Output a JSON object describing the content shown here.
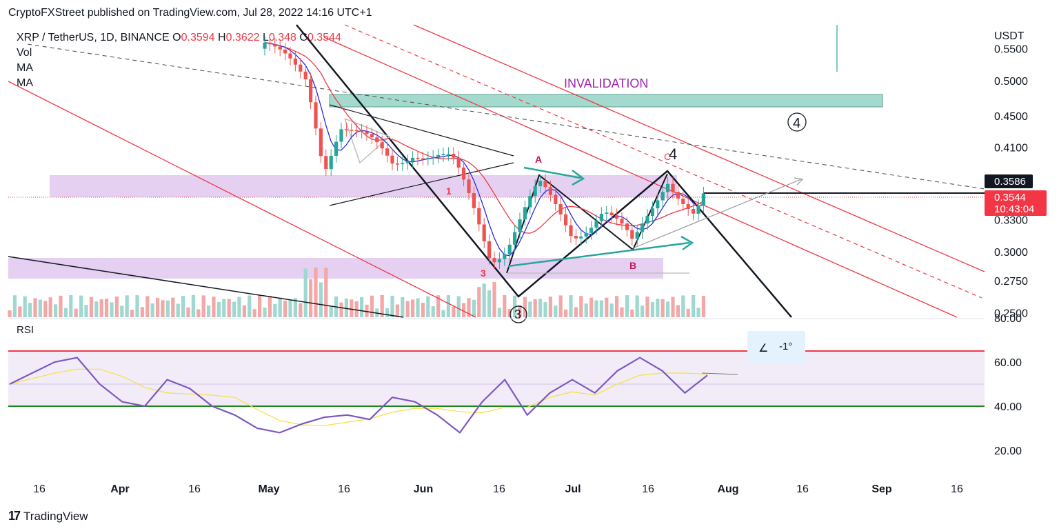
{
  "header": {
    "publisher": "CryptoFXStreet published on TradingView.com, Jul 28, 2022 14:16 UTC+1"
  },
  "legend": {
    "symbol": "XRP / TetherUS, 1D, BINANCE",
    "o_label": "O",
    "o_value": "0.3594",
    "h_label": "H",
    "h_value": "0.3622",
    "l_label": "L",
    "l_value": "0.348",
    "c_label": "C",
    "c_value": "0.3544",
    "indicators": [
      "Vol",
      "MA",
      "MA"
    ]
  },
  "price_axis": {
    "currency": "USDT",
    "ticks": [
      "0.5500",
      "0.5000",
      "0.4500",
      "0.4100",
      "0.3300",
      "0.3000",
      "0.2750",
      "0.2500"
    ]
  },
  "price_tags": {
    "line_price": "0.3586",
    "last_price": "0.3544",
    "countdown": "10:43:04"
  },
  "annotations": {
    "invalidation": "INVALIDATION",
    "wave4_circle": "4",
    "wave_c_label": "C",
    "wave4_label": "4",
    "wave3_circle": "3",
    "A": "A",
    "B": "B",
    "one": "1",
    "three": "3"
  },
  "rsi": {
    "label": "RSI",
    "ticks": [
      "80.00",
      "60.00",
      "40.00",
      "20.00"
    ],
    "angle_label": "-1°"
  },
  "x_axis": {
    "labels": [
      "16",
      "Apr",
      "16",
      "May",
      "16",
      "Jun",
      "16",
      "Jul",
      "16",
      "Aug",
      "16",
      "Sep",
      "16"
    ],
    "bold": [
      "Apr",
      "May",
      "Jun",
      "Jul",
      "Aug",
      "Sep"
    ]
  },
  "brand": {
    "logo": "17",
    "name": "TradingView"
  },
  "colors": {
    "up": "#26a69a",
    "down": "#ef5350",
    "zone_purple": "#e1c8ef",
    "zone_teal": "#a3dacd",
    "rsi_line": "#7e57c2",
    "rsi_ma": "#f7e04a",
    "red_line": "#f23645",
    "green_line": "#1b8a1b"
  },
  "chart_data": [
    {
      "type": "candlestick",
      "title": "XRP / TetherUS, 1D, BINANCE",
      "y_scale": "log",
      "ylim": [
        0.25,
        0.56
      ],
      "x": [
        "2022-05-10",
        "2022-05-12",
        "2022-05-16",
        "2022-05-26",
        "2022-06-01",
        "2022-06-08",
        "2022-06-13",
        "2022-06-18",
        "2022-06-24",
        "2022-07-01",
        "2022-07-07",
        "2022-07-13",
        "2022-07-19",
        "2022-07-21",
        "2022-07-25",
        "2022-07-28"
      ],
      "close": [
        0.5,
        0.39,
        0.44,
        0.39,
        0.41,
        0.39,
        0.3,
        0.31,
        0.36,
        0.32,
        0.34,
        0.3,
        0.36,
        0.38,
        0.33,
        0.3544
      ],
      "annotations": [
        "INVALIDATION",
        "4",
        "C",
        "A",
        "B",
        "1",
        "3"
      ],
      "zones": [
        {
          "name": "teal supply zone",
          "from": 0.46,
          "to": 0.48
        },
        {
          "name": "purple resistance zone",
          "from": 0.355,
          "to": 0.378
        },
        {
          "name": "purple support zone",
          "from": 0.27,
          "to": 0.293
        }
      ]
    },
    {
      "type": "line",
      "title": "RSI",
      "ylim": [
        0,
        80
      ],
      "levels": [
        65,
        40
      ],
      "series": [
        {
          "name": "RSI",
          "values": [
            50,
            55,
            60,
            62,
            50,
            42,
            40,
            52,
            48,
            40,
            36,
            30,
            28,
            32,
            35,
            36,
            34,
            44,
            42,
            36,
            28,
            42,
            52,
            36,
            46,
            52,
            46,
            56,
            62,
            56,
            46,
            54
          ]
        }
      ]
    }
  ]
}
